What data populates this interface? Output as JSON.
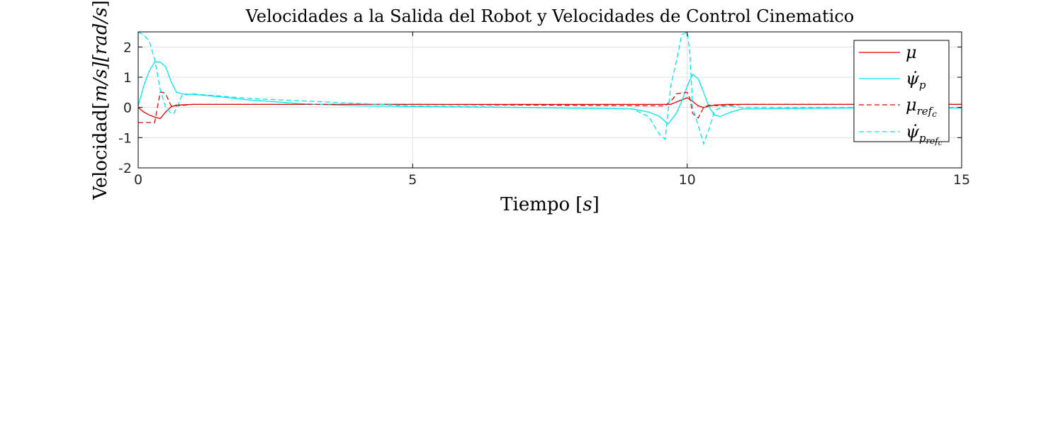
{
  "chart_data": {
    "type": "line",
    "title": "Velocidades a la Salida del Robot y Velocidades de Control Cinematico",
    "xlabel_text": "Tiempo",
    "xlabel_unit": "s",
    "ylabel_text": "Velocidad",
    "ylabel_unit": "m/s][rad/s",
    "xlim": [
      0,
      15
    ],
    "ylim": [
      -2,
      2.5
    ],
    "xticks": [
      "0",
      "5",
      "10",
      "15"
    ],
    "yticks": [
      "-2",
      "-1",
      "0",
      "1",
      "2"
    ],
    "grid": true,
    "legend_position": "top-right",
    "series": [
      {
        "name": "μ",
        "legend_symbol": "μ",
        "color": "#e00000",
        "style": "solid",
        "x": [
          0,
          0.1,
          0.2,
          0.3,
          0.4,
          0.5,
          0.6,
          0.7,
          1.0,
          2.0,
          5.0,
          9.0,
          9.5,
          9.7,
          9.9,
          10.0,
          10.1,
          10.2,
          10.3,
          10.5,
          10.7,
          11.0,
          13.0,
          15.0
        ],
        "y": [
          0.0,
          -0.15,
          -0.25,
          -0.32,
          -0.37,
          -0.15,
          0.02,
          0.08,
          0.1,
          0.1,
          0.1,
          0.1,
          0.1,
          0.1,
          0.25,
          0.32,
          0.2,
          0.05,
          0.0,
          0.08,
          0.1,
          0.1,
          0.1,
          0.1
        ]
      },
      {
        "name": "ψ̇p",
        "legend_symbol": "ψ̇",
        "legend_sub": "p",
        "color": "#00e5ee",
        "style": "solid",
        "x": [
          0,
          0.1,
          0.2,
          0.3,
          0.4,
          0.5,
          0.6,
          0.7,
          0.8,
          1.0,
          1.5,
          2.0,
          3.0,
          4.0,
          5.0,
          7.0,
          9.0,
          9.3,
          9.5,
          9.65,
          9.8,
          9.9,
          10.0,
          10.1,
          10.2,
          10.3,
          10.4,
          10.5,
          10.6,
          10.8,
          11.0,
          13.0,
          15.0
        ],
        "y": [
          0.05,
          0.7,
          1.2,
          1.5,
          1.5,
          1.35,
          0.85,
          0.5,
          0.45,
          0.43,
          0.35,
          0.25,
          0.12,
          0.05,
          0.03,
          0.0,
          -0.05,
          -0.15,
          -0.3,
          -0.55,
          -0.2,
          0.2,
          0.7,
          1.1,
          0.95,
          0.5,
          0.0,
          -0.25,
          -0.3,
          -0.15,
          -0.05,
          -0.02,
          -0.02
        ]
      },
      {
        "name": "μrefc",
        "legend_symbol": "μ",
        "legend_sub": "ref",
        "legend_subsub": "c",
        "color": "#cc1010",
        "style": "dashed",
        "x": [
          0,
          0.3,
          0.35,
          0.4,
          0.45,
          0.5,
          0.55,
          0.6,
          0.7,
          1.0,
          5.0,
          9.6,
          9.75,
          9.8,
          10.0,
          10.05,
          10.1,
          10.2,
          10.3,
          10.4,
          10.6,
          11.0,
          15.0
        ],
        "y": [
          -0.5,
          -0.5,
          0.0,
          0.5,
          0.5,
          0.45,
          0.25,
          0.05,
          0.05,
          0.1,
          0.1,
          0.05,
          0.3,
          0.45,
          0.5,
          0.3,
          -0.2,
          -0.35,
          0.0,
          0.08,
          0.05,
          0.1,
          0.1
        ]
      },
      {
        "name": "ψ̇prefc",
        "legend_symbol": "ψ̇",
        "legend_sub": "p",
        "legend_subsub": "ref",
        "legend_subsubsub": "c",
        "color": "#00e5ee",
        "style": "dashed",
        "x": [
          0,
          0.1,
          0.2,
          0.3,
          0.4,
          0.5,
          0.6,
          0.65,
          0.7,
          0.8,
          1.0,
          2.0,
          5.0,
          9.0,
          9.3,
          9.5,
          9.6,
          9.7,
          9.8,
          9.9,
          10.0,
          10.05,
          10.1,
          10.2,
          10.3,
          10.4,
          10.5,
          10.7,
          11.0,
          15.0
        ],
        "y": [
          2.5,
          2.4,
          2.2,
          1.6,
          0.6,
          0.0,
          -0.2,
          -0.2,
          0.0,
          0.4,
          0.45,
          0.3,
          0.05,
          -0.05,
          -0.3,
          -0.9,
          -1.05,
          0.7,
          1.5,
          2.4,
          2.5,
          1.8,
          0.0,
          -0.6,
          -1.2,
          -0.7,
          -0.1,
          0.05,
          0.0,
          0.0
        ]
      }
    ]
  }
}
